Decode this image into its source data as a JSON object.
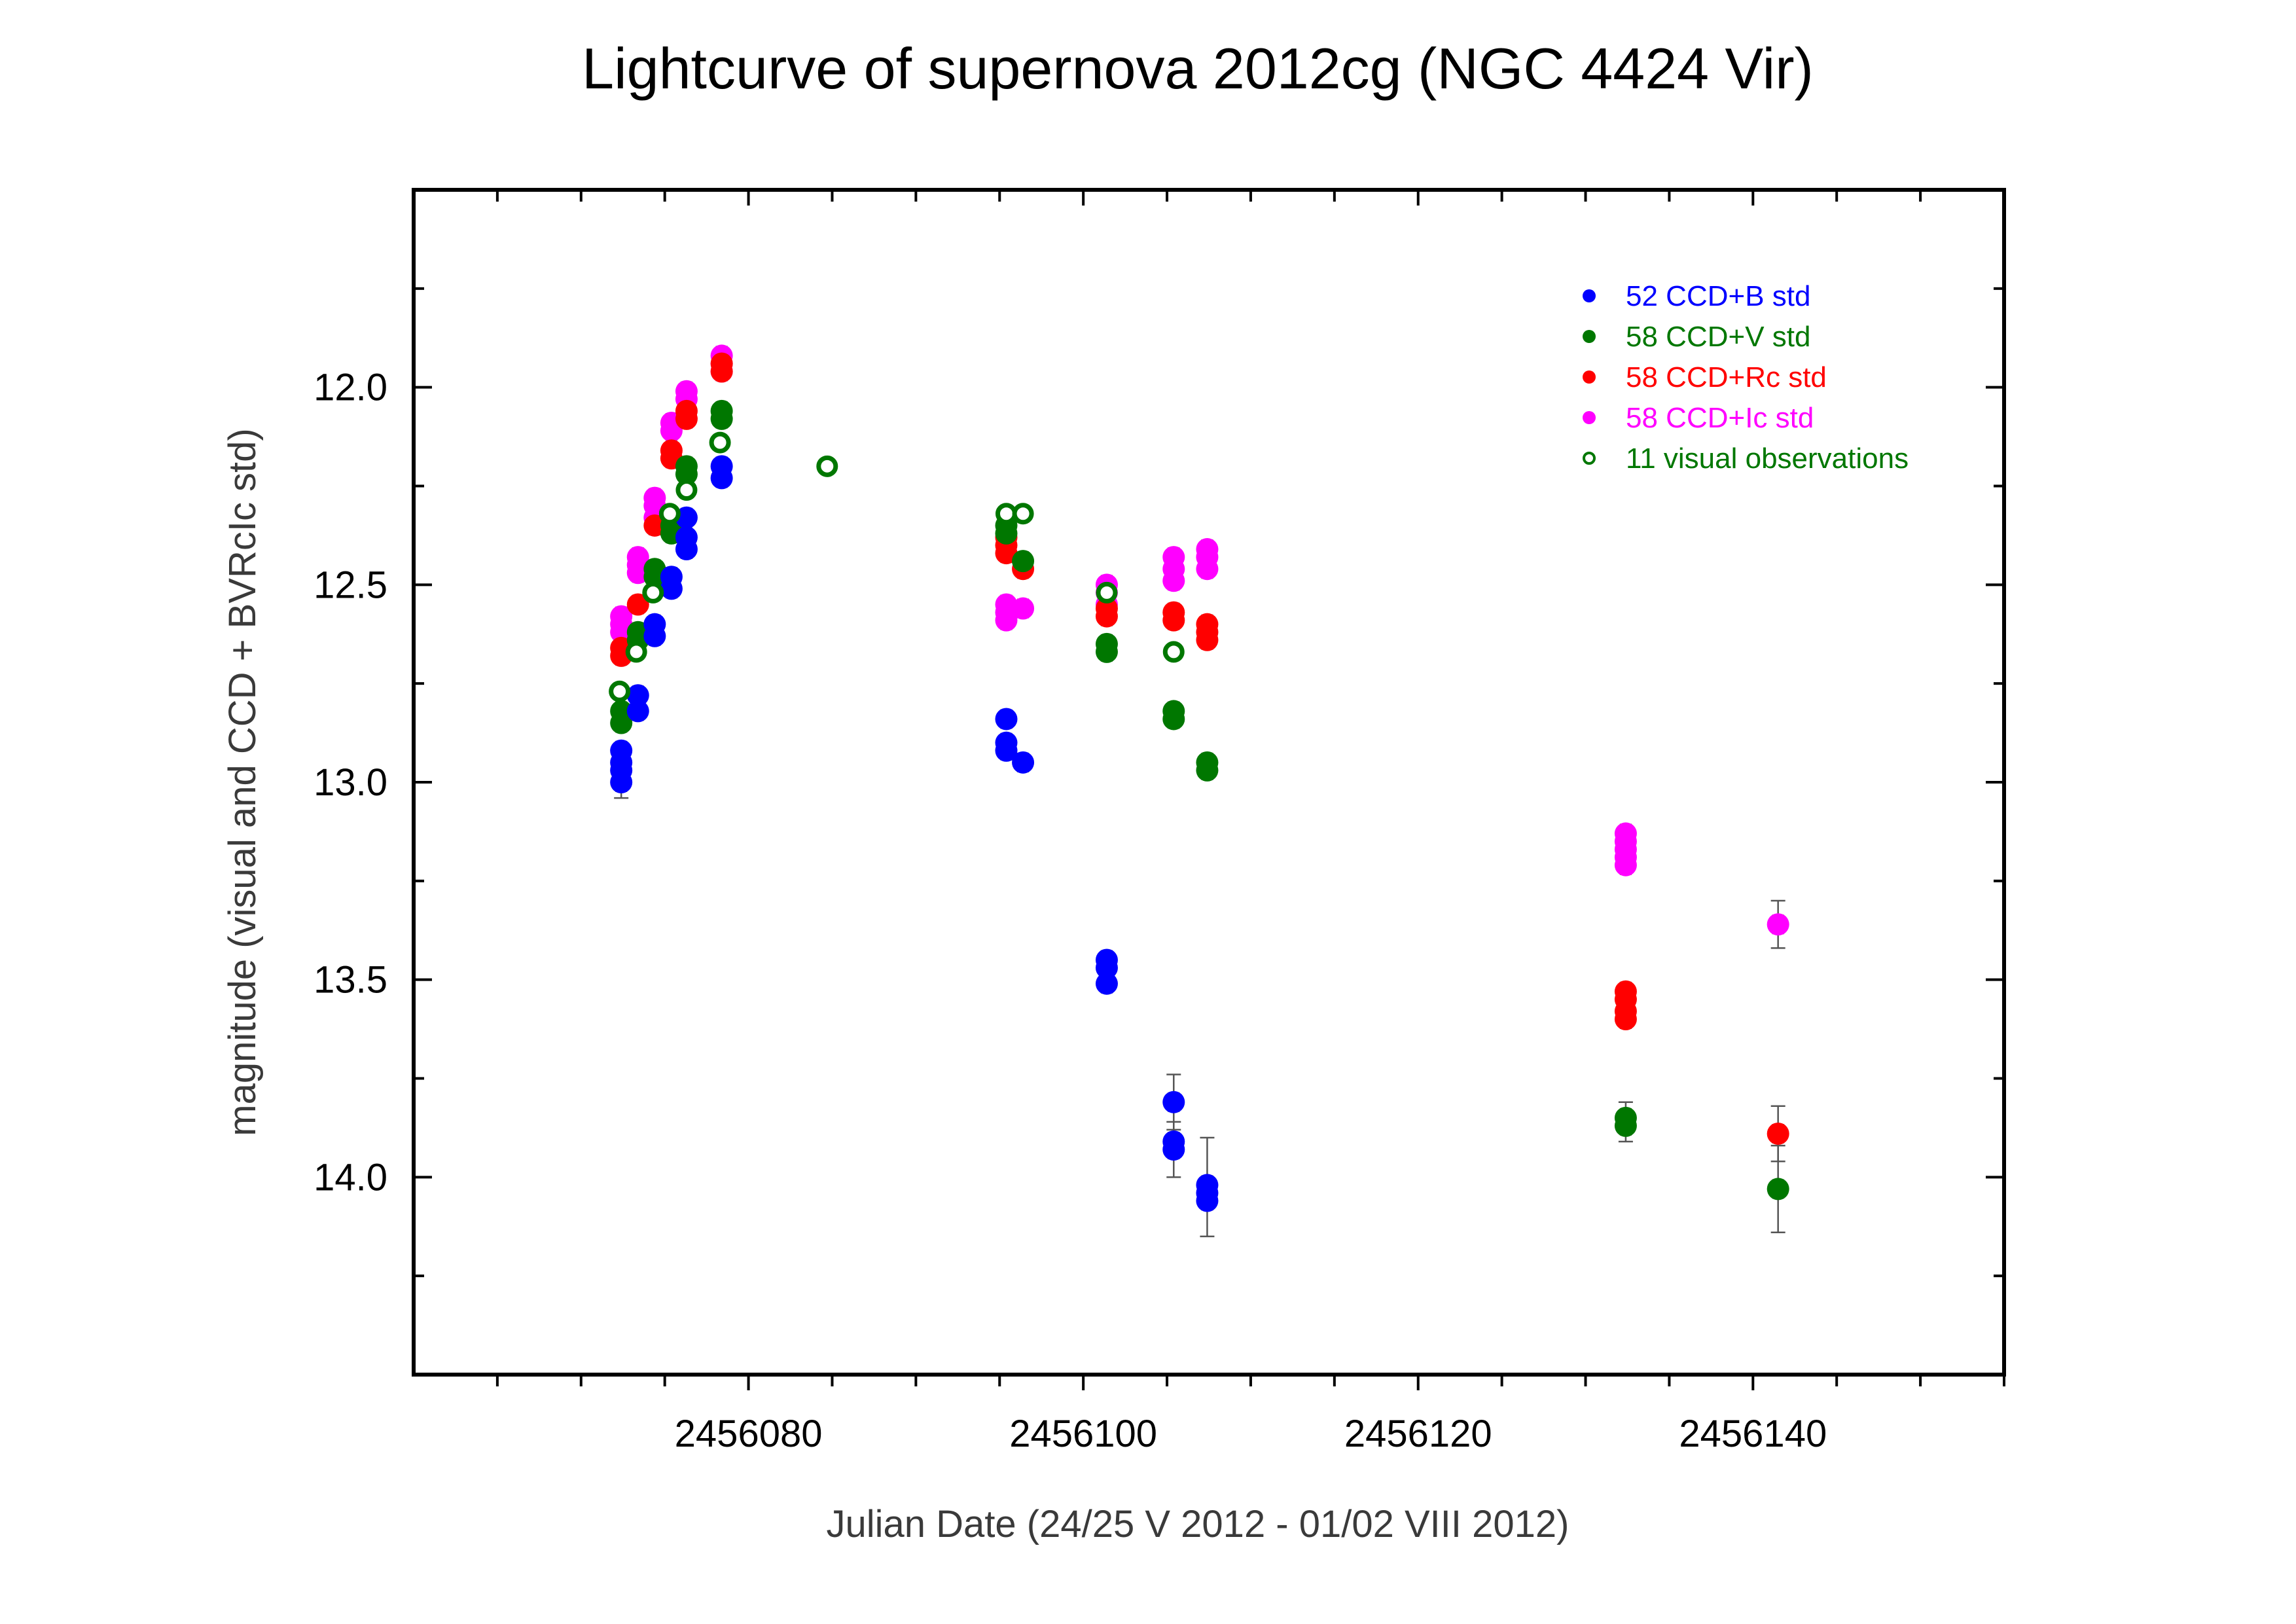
{
  "chart_data": {
    "type": "scatter",
    "title": "Lightcurve of supernova 2012cg (NGC 4424 Vir)",
    "xlabel": "Julian Date  (24/25 V 2012 - 01/02 VIII 2012)",
    "ylabel": "magnitude (visual and CCD + BVRcIc std)",
    "xlim": [
      2456060,
      2456155
    ],
    "ylim": [
      14.5,
      11.5
    ],
    "y_inverted": true,
    "x_ticks": [
      2456080,
      2456100,
      2456120,
      2456140
    ],
    "x_tick_labels": [
      "2456080",
      "2456100",
      "2456120",
      "2456140"
    ],
    "y_ticks": [
      12.0,
      12.5,
      13.0,
      13.5,
      14.0
    ],
    "y_tick_labels": [
      "12.0",
      "12.5",
      "13.0",
      "13.5",
      "14.0"
    ],
    "grid": false,
    "legend_position": "top-right",
    "series": [
      {
        "name": "52 CCD+B std",
        "color": "#0000ff",
        "marker": "filled-circle",
        "points": [
          [
            2456072.4,
            12.92
          ],
          [
            2456072.4,
            12.95
          ],
          [
            2456072.4,
            12.97
          ],
          [
            2456072.4,
            13.0
          ],
          [
            2456073.4,
            12.78
          ],
          [
            2456073.4,
            12.82
          ],
          [
            2456074.4,
            12.6
          ],
          [
            2456074.4,
            12.63
          ],
          [
            2456075.4,
            12.48
          ],
          [
            2456075.4,
            12.51
          ],
          [
            2456076.3,
            12.33
          ],
          [
            2456076.3,
            12.38
          ],
          [
            2456076.3,
            12.41
          ],
          [
            2456078.4,
            12.2
          ],
          [
            2456078.4,
            12.23
          ],
          [
            2456095.4,
            12.84
          ],
          [
            2456095.4,
            12.9
          ],
          [
            2456095.4,
            12.92
          ],
          [
            2456096.4,
            12.95
          ],
          [
            2456101.4,
            13.45
          ],
          [
            2456101.4,
            13.47
          ],
          [
            2456101.4,
            13.51
          ],
          [
            2456105.4,
            13.81
          ],
          [
            2456105.4,
            13.91
          ],
          [
            2456105.4,
            13.93
          ],
          [
            2456107.4,
            14.02
          ],
          [
            2456107.4,
            14.04
          ],
          [
            2456107.4,
            14.06
          ]
        ]
      },
      {
        "name": "58 CCD+V std",
        "color": "#007700",
        "marker": "filled-circle",
        "points": [
          [
            2456072.4,
            12.82
          ],
          [
            2456072.4,
            12.85
          ],
          [
            2456073.4,
            12.62
          ],
          [
            2456073.4,
            12.64
          ],
          [
            2456074.4,
            12.46
          ],
          [
            2456074.4,
            12.48
          ],
          [
            2456075.4,
            12.35
          ],
          [
            2456075.4,
            12.37
          ],
          [
            2456076.3,
            12.2
          ],
          [
            2456076.3,
            12.22
          ],
          [
            2456078.4,
            12.06
          ],
          [
            2456078.4,
            12.08
          ],
          [
            2456095.4,
            12.35
          ],
          [
            2456095.4,
            12.37
          ],
          [
            2456096.4,
            12.44
          ],
          [
            2456101.4,
            12.65
          ],
          [
            2456101.4,
            12.67
          ],
          [
            2456105.4,
            12.82
          ],
          [
            2456105.4,
            12.84
          ],
          [
            2456107.4,
            12.95
          ],
          [
            2456107.4,
            12.97
          ],
          [
            2456132.4,
            13.85
          ],
          [
            2456132.4,
            13.87
          ],
          [
            2456141.5,
            14.03
          ]
        ]
      },
      {
        "name": "58 CCD+Rc std",
        "color": "#ff0000",
        "marker": "filled-circle",
        "points": [
          [
            2456072.4,
            12.66
          ],
          [
            2456072.4,
            12.68
          ],
          [
            2456073.4,
            12.55
          ],
          [
            2456074.4,
            12.35
          ],
          [
            2456075.4,
            12.16
          ],
          [
            2456075.4,
            12.18
          ],
          [
            2456076.3,
            12.06
          ],
          [
            2456076.3,
            12.08
          ],
          [
            2456078.4,
            11.94
          ],
          [
            2456078.4,
            11.96
          ],
          [
            2456095.4,
            12.38
          ],
          [
            2456095.4,
            12.4
          ],
          [
            2456095.4,
            12.42
          ],
          [
            2456096.4,
            12.46
          ],
          [
            2456101.4,
            12.56
          ],
          [
            2456101.4,
            12.58
          ],
          [
            2456105.4,
            12.57
          ],
          [
            2456105.4,
            12.59
          ],
          [
            2456107.4,
            12.6
          ],
          [
            2456107.4,
            12.62
          ],
          [
            2456107.4,
            12.64
          ],
          [
            2456132.4,
            13.53
          ],
          [
            2456132.4,
            13.55
          ],
          [
            2456132.4,
            13.58
          ],
          [
            2456132.4,
            13.6
          ],
          [
            2456141.5,
            13.89
          ]
        ]
      },
      {
        "name": "58 CCD+Ic std",
        "color": "#ff00ff",
        "marker": "filled-circle",
        "points": [
          [
            2456072.4,
            12.58
          ],
          [
            2456072.4,
            12.6
          ],
          [
            2456072.4,
            12.62
          ],
          [
            2456073.4,
            12.43
          ],
          [
            2456073.4,
            12.45
          ],
          [
            2456073.4,
            12.47
          ],
          [
            2456074.4,
            12.28
          ],
          [
            2456074.4,
            12.3
          ],
          [
            2456074.4,
            12.33
          ],
          [
            2456075.4,
            12.09
          ],
          [
            2456075.4,
            12.11
          ],
          [
            2456076.3,
            12.01
          ],
          [
            2456076.3,
            12.03
          ],
          [
            2456078.4,
            11.92
          ],
          [
            2456078.4,
            11.94
          ],
          [
            2456078.4,
            11.96
          ],
          [
            2456095.4,
            12.55
          ],
          [
            2456095.4,
            12.57
          ],
          [
            2456095.4,
            12.59
          ],
          [
            2456096.4,
            12.56
          ],
          [
            2456101.4,
            12.5
          ],
          [
            2456101.4,
            12.52
          ],
          [
            2456101.4,
            12.55
          ],
          [
            2456105.4,
            12.43
          ],
          [
            2456105.4,
            12.46
          ],
          [
            2456105.4,
            12.49
          ],
          [
            2456107.4,
            12.41
          ],
          [
            2456107.4,
            12.43
          ],
          [
            2456107.4,
            12.46
          ],
          [
            2456132.4,
            13.13
          ],
          [
            2456132.4,
            13.15
          ],
          [
            2456132.4,
            13.17
          ],
          [
            2456132.4,
            13.19
          ],
          [
            2456132.4,
            13.21
          ],
          [
            2456141.5,
            13.36
          ]
        ]
      },
      {
        "name": "11 visual observations",
        "color": "#007700",
        "marker": "open-circle",
        "points": [
          [
            2456072.3,
            12.77
          ],
          [
            2456073.3,
            12.67
          ],
          [
            2456074.3,
            12.52
          ],
          [
            2456075.3,
            12.32
          ],
          [
            2456076.3,
            12.26
          ],
          [
            2456078.3,
            12.14
          ],
          [
            2456084.7,
            12.2
          ],
          [
            2456095.4,
            12.32
          ],
          [
            2456096.4,
            12.32
          ],
          [
            2456101.4,
            12.52
          ],
          [
            2456105.4,
            12.67
          ]
        ]
      }
    ],
    "error_bars": [
      {
        "x": 2456107.4,
        "y": 14.04,
        "y_low": 13.9,
        "y_high": 14.15
      },
      {
        "x": 2456105.4,
        "y": 13.81,
        "y_low": 13.74,
        "y_high": 13.88
      },
      {
        "x": 2456105.4,
        "y": 13.92,
        "y_low": 13.86,
        "y_high": 14.0
      },
      {
        "x": 2456141.5,
        "y": 13.36,
        "y_low": 13.3,
        "y_high": 13.42
      },
      {
        "x": 2456141.5,
        "y": 13.89,
        "y_low": 13.82,
        "y_high": 13.96
      },
      {
        "x": 2456141.5,
        "y": 14.03,
        "y_low": 13.92,
        "y_high": 14.14
      },
      {
        "x": 2456072.4,
        "y": 13.0,
        "y_low": 12.96,
        "y_high": 13.04
      },
      {
        "x": 2456132.4,
        "y": 13.86,
        "y_low": 13.81,
        "y_high": 13.91
      }
    ]
  }
}
